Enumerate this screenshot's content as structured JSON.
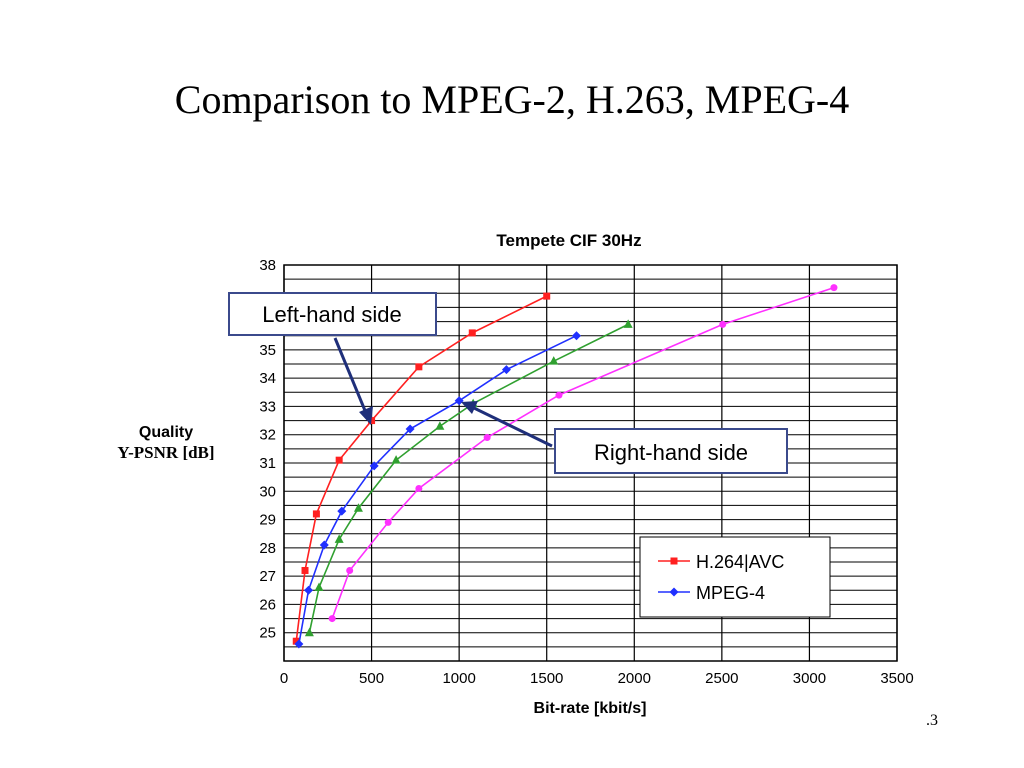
{
  "slide": {
    "title": "Comparison to MPEG-2, H.263, MPEG-4",
    "page_number": ".3"
  },
  "callouts": {
    "left": "Left-hand side",
    "right": "Right-hand side",
    "box_border_color": "#3b4a8c",
    "arrow_color": "#1f2f7a"
  },
  "chart_data": {
    "type": "line",
    "title": "Tempete CIF 30Hz",
    "xlabel": "Bit-rate [kbit/s]",
    "ylabel_line1": "Quality",
    "ylabel_line2": "Y-PSNR [dB]",
    "xlim": [
      0,
      3500
    ],
    "ylim": [
      24,
      38
    ],
    "xticks": [
      0,
      500,
      1000,
      1500,
      2000,
      2500,
      3000,
      3500
    ],
    "yticks": [
      25,
      26,
      27,
      28,
      29,
      30,
      31,
      32,
      33,
      34,
      35,
      38
    ],
    "grid": true,
    "legend_position": "bottom-right",
    "series": [
      {
        "name": "H.264|AVC",
        "color": "#ff2020",
        "marker": "square",
        "x": [
          70,
          120,
          185,
          315,
          500,
          770,
          1075,
          1500
        ],
        "y": [
          24.7,
          27.2,
          29.2,
          31.1,
          32.5,
          34.4,
          35.6,
          36.9
        ]
      },
      {
        "name": "MPEG-4",
        "color": "#2030ff",
        "marker": "diamond",
        "x": [
          85,
          140,
          230,
          330,
          515,
          720,
          1000,
          1270,
          1670
        ],
        "y": [
          24.6,
          26.5,
          28.1,
          29.3,
          30.9,
          32.2,
          33.2,
          34.3,
          35.5
        ]
      },
      {
        "name": "",
        "color": "#30a030",
        "marker": "triangle",
        "x": [
          145,
          200,
          315,
          425,
          640,
          890,
          1080,
          1540,
          1965
        ],
        "y": [
          25.0,
          26.6,
          28.3,
          29.4,
          31.1,
          32.3,
          33.1,
          34.6,
          35.9
        ]
      },
      {
        "name": "",
        "color": "#ff30ff",
        "marker": "circle",
        "x": [
          275,
          375,
          595,
          770,
          1160,
          1570,
          2505,
          3140
        ],
        "y": [
          25.5,
          27.2,
          28.9,
          30.1,
          31.9,
          33.4,
          35.9,
          37.2
        ]
      }
    ]
  }
}
